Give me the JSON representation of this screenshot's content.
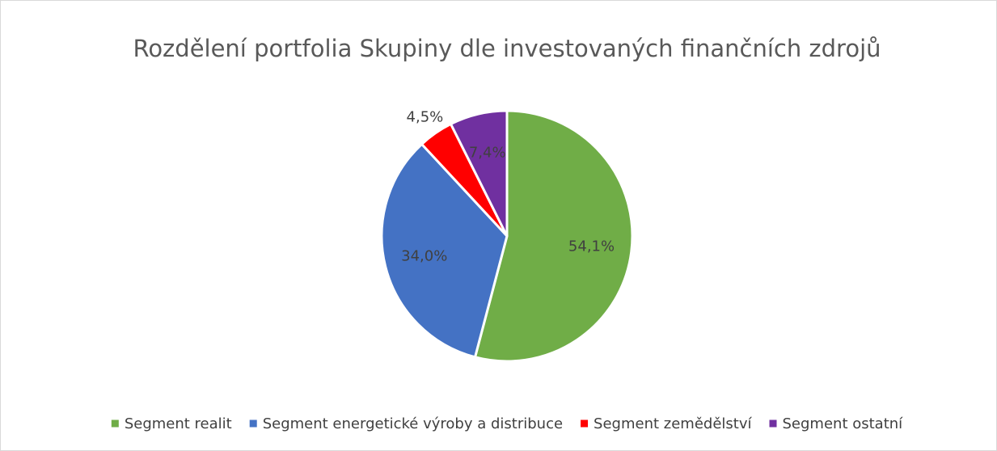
{
  "chart_data": {
    "type": "pie",
    "title": "Rozdělení portfolia Skupiny dle investovaných finančních zdrojů",
    "categories": [
      "Segment realit",
      "Segment energetické výroby a distribuce",
      "Segment zemědělství",
      "Segment ostatní"
    ],
    "values": [
      54.1,
      34.0,
      4.5,
      7.4
    ],
    "value_labels": [
      "54,1%",
      "34,0%",
      "4,5%",
      "7,4%"
    ],
    "colors": [
      "#70ad47",
      "#4472c4",
      "#ff0000",
      "#7030a0"
    ],
    "legend": "bottom"
  }
}
